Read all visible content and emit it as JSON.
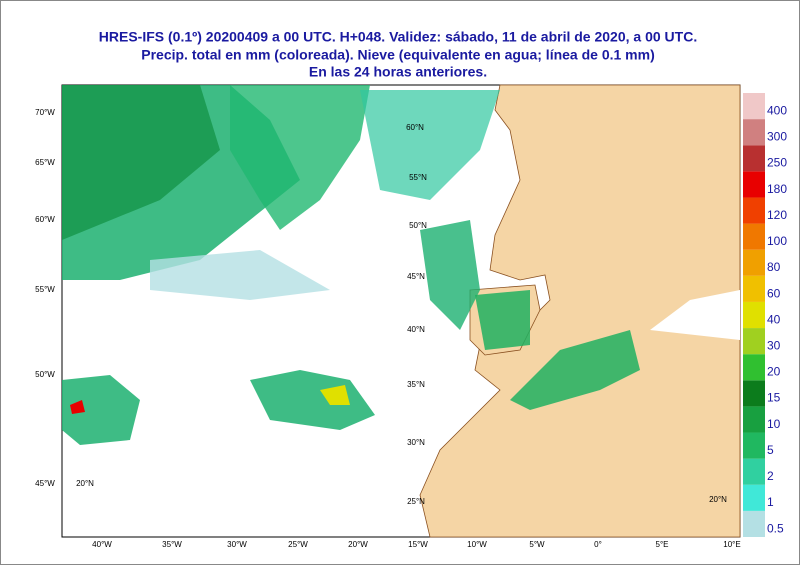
{
  "header": {
    "lines": [
      "HRES-IFS (0.1º) 20200409 a 00 UTC.  H+048. Validez: sábado, 11 de abril de 2020,  a  00 UTC.",
      "Precip. total en mm (coloreada). Nieve (equivalente en agua; línea de 0.1 mm)",
      "En las 24 horas anteriores."
    ]
  },
  "map": {
    "bottom_labels": [
      "40°W",
      "35°W",
      "30°W",
      "25°W",
      "20°W",
      "15°W",
      "10°W",
      "5°W",
      "0°",
      "5°E",
      "10°E"
    ],
    "left_labels": [
      "70°W",
      "65°W",
      "60°W",
      "55°W",
      "50°W",
      "45°W"
    ],
    "grid_labels": [
      "60°N",
      "55°N",
      "50°N",
      "45°N",
      "40°N",
      "35°N",
      "30°N",
      "25°N",
      "20°N",
      "20°N"
    ]
  },
  "legend": {
    "levels": [
      0.5,
      1,
      2,
      5,
      10,
      15,
      20,
      30,
      40,
      60,
      80,
      100,
      120,
      180,
      250,
      300,
      400
    ],
    "colors": [
      "#b4e0e4",
      "#40e8d8",
      "#30d0a0",
      "#20b860",
      "#18a040",
      "#0c7c1c",
      "#30c030",
      "#a0d020",
      "#e0e000",
      "#f0c000",
      "#f0a000",
      "#f07800",
      "#f04000",
      "#e80000",
      "#b83030",
      "#d08080",
      "#f0c8c8"
    ]
  }
}
